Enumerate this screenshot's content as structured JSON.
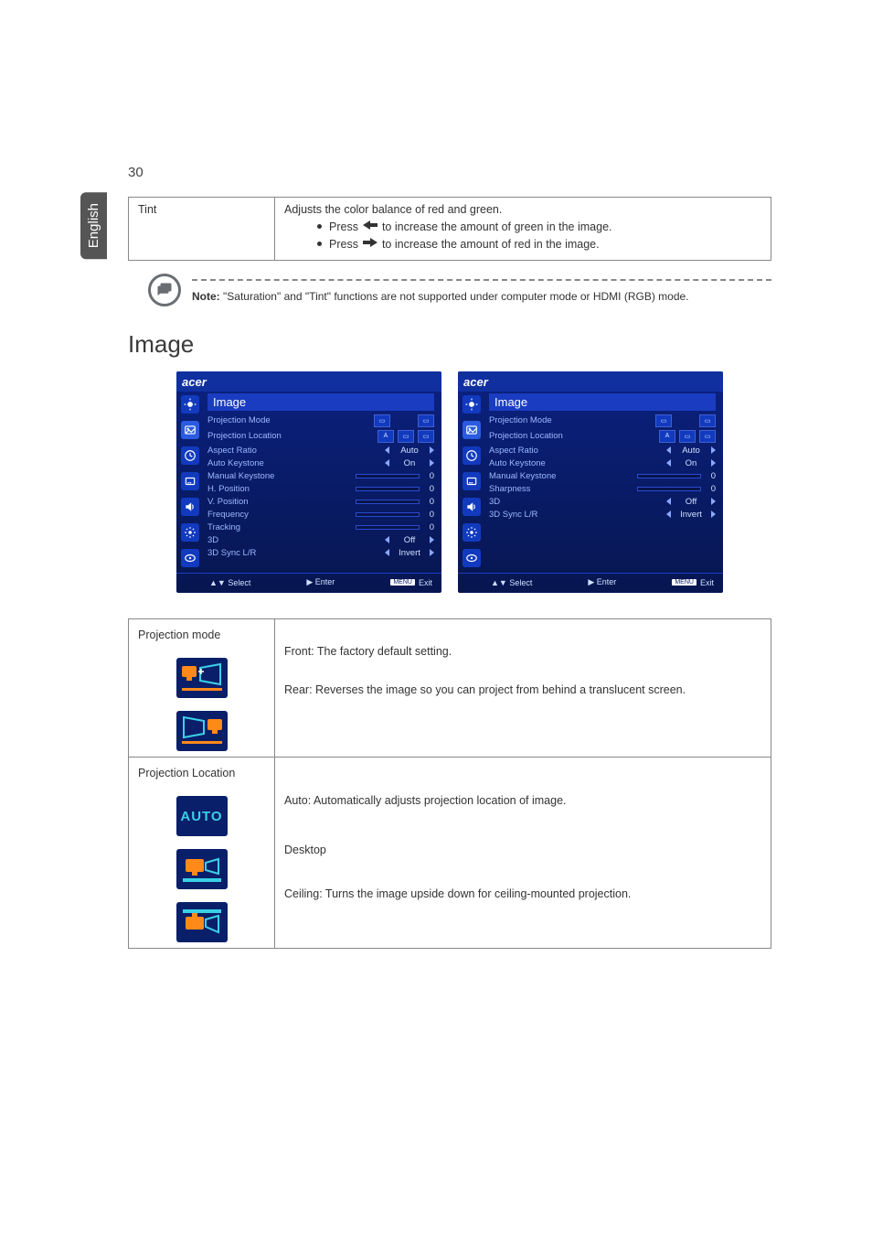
{
  "page_number": "30",
  "side_tab": "English",
  "tint_row": {
    "label": "Tint",
    "desc": "Adjusts the color balance of red and green.",
    "line1_a": "Press ",
    "line1_b": " to increase the amount of green in the image.",
    "line2_a": "Press ",
    "line2_b": " to increase the amount of red in the image."
  },
  "note": {
    "label": "Note:",
    "text": " \"Saturation\" and \"Tint\" functions are not supported under computer mode or HDMI (RGB) mode."
  },
  "section_title": "Image",
  "osd": {
    "logo": "acer",
    "title": "Image",
    "left": {
      "rows": [
        {
          "label": "Projection Mode",
          "type": "boxes"
        },
        {
          "label": "Projection Location",
          "type": "boxes3"
        },
        {
          "label": "Aspect Ratio",
          "type": "arrows",
          "value": "Auto"
        },
        {
          "label": "Auto Keystone",
          "type": "arrows",
          "value": "On"
        },
        {
          "label": "Manual Keystone",
          "type": "slider",
          "num": "0",
          "fill": 50
        },
        {
          "label": "H. Position",
          "type": "slider",
          "num": "0",
          "fill": 50
        },
        {
          "label": "V. Position",
          "type": "slider",
          "num": "0",
          "fill": 50
        },
        {
          "label": "Frequency",
          "type": "slider",
          "num": "0",
          "fill": 50
        },
        {
          "label": "Tracking",
          "type": "slider",
          "num": "0",
          "fill": 50
        },
        {
          "label": "3D",
          "type": "arrows",
          "value": "Off"
        },
        {
          "label": "3D Sync L/R",
          "type": "arrows",
          "value": "Invert"
        }
      ]
    },
    "right": {
      "rows": [
        {
          "label": "Projection Mode",
          "type": "boxes"
        },
        {
          "label": "Projection Location",
          "type": "boxes3"
        },
        {
          "label": "Aspect Ratio",
          "type": "arrows",
          "value": "Auto"
        },
        {
          "label": "Auto Keystone",
          "type": "arrows",
          "value": "On"
        },
        {
          "label": "Manual Keystone",
          "type": "slider",
          "num": "0",
          "fill": 50
        },
        {
          "label": "Sharpness",
          "type": "slider",
          "num": "0",
          "fill": 50
        },
        {
          "label": "3D",
          "type": "arrows",
          "value": "Off"
        },
        {
          "label": "3D Sync L/R",
          "type": "arrows",
          "value": "Invert"
        }
      ]
    },
    "bottom": {
      "select": "Select",
      "enter": "Enter",
      "exit": "Exit",
      "menu": "MENU"
    }
  },
  "proj_mode": {
    "label": "Projection mode",
    "front": "Front: The factory default setting.",
    "rear": "Rear: Reverses the image so you can project from behind a translucent screen."
  },
  "proj_loc": {
    "label": "Projection Location",
    "auto_word": "AUTO",
    "auto": "Auto: Automatically adjusts projection location of image.",
    "desktop": "Desktop",
    "ceiling": "Ceiling: Turns the image upside down for ceiling-mounted projection."
  },
  "colors": {
    "osd_bg": "#0a1f6a",
    "osd_accent": "#1a3cc0",
    "orange": "#ff8a1a",
    "cyan": "#3ad0e6"
  }
}
